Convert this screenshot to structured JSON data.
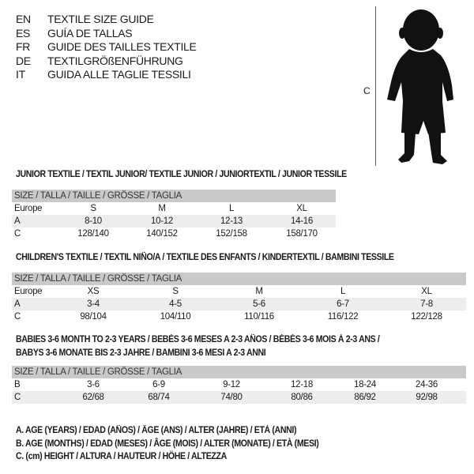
{
  "languages": [
    {
      "code": "EN",
      "title": "TEXTILE SIZE GUIDE"
    },
    {
      "code": "ES",
      "title": "GUÍA DE TALLAS"
    },
    {
      "code": "FR",
      "title": "GUIDE DES TAILLES TEXTILE"
    },
    {
      "code": "DE",
      "title": "TEXTILGRÖßENFÜHRUNG"
    },
    {
      "code": "IT",
      "title": "GUIDA ALLE TAGLIE TESSILI"
    }
  ],
  "figure": {
    "measure_label": "C",
    "icon": "child-silhouette"
  },
  "junior": {
    "title": "JUNIOR TEXTILE / TEXTIL JUNIOR/ TEXTILE JUNIOR / JUNIORTEXTIL / JUNIOR TESSILE",
    "header": "SIZE / TALLA / TAILLE / GRÖSSE / TAGLIA",
    "rows": [
      {
        "label": "Europe",
        "cells": [
          "S",
          "M",
          "L",
          "XL"
        ]
      },
      {
        "label": "A",
        "cells": [
          "8-10",
          "10-12",
          "12-13",
          "14-16"
        ]
      },
      {
        "label": "C",
        "cells": [
          "128/140",
          "140/152",
          "152/158",
          "158/170"
        ]
      }
    ]
  },
  "children": {
    "title": "CHILDREN'S TEXTILE / TEXTIL NIÑO/A / TEXTILE DES ENFANTS / KINDERTEXTIL / BAMBINI TESSILE",
    "header": "SIZE / TALLA / TAILLE / GRÖSSE / TAGLIA",
    "rows": [
      {
        "label": "Europe",
        "cells": [
          "XS",
          "S",
          "M",
          "L",
          "XL"
        ]
      },
      {
        "label": "A",
        "cells": [
          "3-4",
          "4-5",
          "5-6",
          "6-7",
          "7-8"
        ]
      },
      {
        "label": "C",
        "cells": [
          "98/104",
          "104/110",
          "110/116",
          "116/122",
          "122/128"
        ]
      }
    ]
  },
  "babies": {
    "title_line1": "BABIES 3-6 MONTH TO 2-3 YEARS / BEBÉS 3-6 MESES A 2-3 AÑOS / BÉBÉS 3-6 MOIS À 2-3 ANS /",
    "title_line2": "BABYS 3-6 MONATE BIS 2-3 JAHRE / BAMBINI 3-6 MESI A 2-3 ANNI",
    "header": "SIZE / TALLA / TAILLE / GRÖSSE / TAGLIA",
    "rows": [
      {
        "label": "B",
        "cells": [
          "3-6",
          "6-9",
          "9-12",
          "12-18",
          "18-24",
          "24-36"
        ]
      },
      {
        "label": "C",
        "cells": [
          "62/68",
          "68/74",
          "74/80",
          "80/86",
          "86/92",
          "92/98"
        ]
      }
    ]
  },
  "legend": [
    "A. AGE (YEARS) / EDAD (AÑOS) / ÂGE (ANS) / ALTER (JAHRE) / ETÀ (ANNI)",
    "B. AGE (MONTHS) / EDAD (MESES) / ÂGE (MOIS) / ALTER (MONATE) / ETÀ (MESI)",
    "C. (cm) HEIGHT / ALTURA / HAUTEUR / HÖHE / ALTEZZA"
  ]
}
